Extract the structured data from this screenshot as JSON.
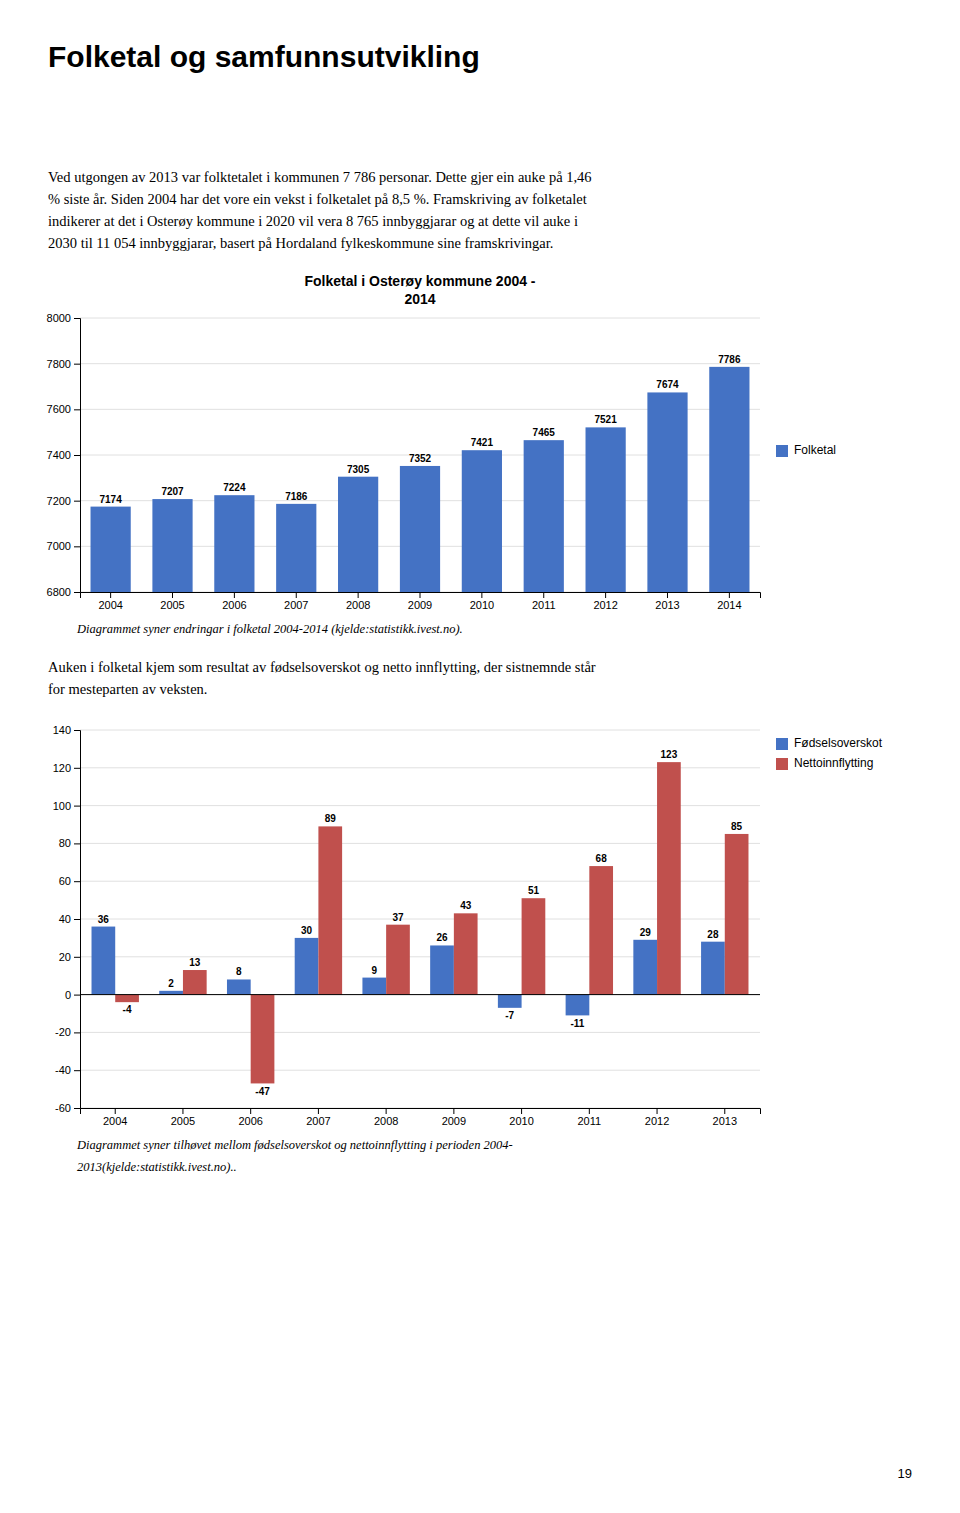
{
  "text": {
    "title": "Folketal og samfunnsutvikling",
    "paragraph1": [
      "Ved utgongen av 2013 var folktetalet i kommunen 7 786 personar. Dette gjer ein auke på 1,46",
      "% siste år. Siden 2004 har det vore ein vekst i folketalet på 8,5 %. Framskriving av folketalet",
      "indikerer at det i Osterøy kommune i 2020 vil vera 8 765 innbyggjarar og at dette vil auke i",
      "2030 til 11 054 innbyggjarar, basert på Hordaland fylkeskommune sine framskrivingar."
    ],
    "caption1": [
      "Diagrammet syner endringar i folketal 2004-2014 (kjelde:statistikk.ivest.no)."
    ],
    "paragraph2": [
      "Auken i folketal kjem som resultat av fødselsoverskot og netto innflytting, der sistnemnde står",
      "for mesteparten av veksten."
    ],
    "caption2": [
      "Diagrammet syner tilhøvet mellom fødselsoverskot og nettoinnflytting i perioden 2004-",
      "2013(kjelde:statistikk.ivest.no).."
    ],
    "page_number": "19"
  },
  "chart_data": [
    {
      "type": "bar",
      "title": "Folketal i Osterøy kommune 2004 -\n2014",
      "categories": [
        "2004",
        "2005",
        "2006",
        "2007",
        "2008",
        "2009",
        "2010",
        "2011",
        "2012",
        "2013",
        "2014"
      ],
      "series": [
        {
          "name": "Folketal",
          "color": "#4472C4",
          "values": [
            7174,
            7207,
            7224,
            7186,
            7305,
            7352,
            7421,
            7465,
            7521,
            7674,
            7786
          ]
        }
      ],
      "ylim": [
        6800,
        8000
      ],
      "yticks": [
        6800,
        7000,
        7200,
        7400,
        7600,
        7800,
        8000
      ],
      "grid": true,
      "legend": "right",
      "data_labels": true
    },
    {
      "type": "bar",
      "categories": [
        "2004",
        "2005",
        "2006",
        "2007",
        "2008",
        "2009",
        "2010",
        "2011",
        "2012",
        "2013"
      ],
      "series": [
        {
          "name": "Fødselsoverskot",
          "color": "#4472C4",
          "values": [
            36,
            2,
            8,
            30,
            9,
            26,
            -7,
            -11,
            29,
            28
          ]
        },
        {
          "name": "Nettoinnflytting",
          "color": "#C0504D",
          "values": [
            -4,
            13,
            -47,
            89,
            37,
            43,
            51,
            68,
            123,
            85
          ]
        }
      ],
      "ylim": [
        -60,
        140
      ],
      "yticks": [
        -60,
        -40,
        -20,
        0,
        20,
        40,
        60,
        80,
        100,
        120,
        140
      ],
      "grid": true,
      "legend": "upper right",
      "data_labels": true
    }
  ]
}
